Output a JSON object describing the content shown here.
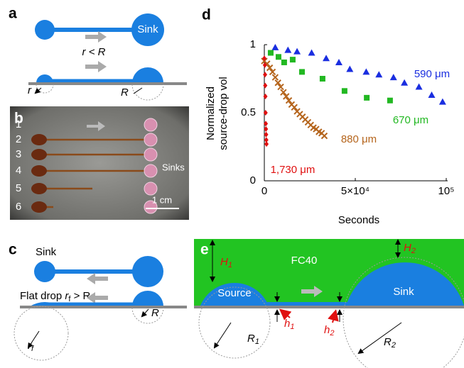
{
  "panels": {
    "a": {
      "label": "a",
      "sink": "Sink",
      "relation": "r < R",
      "r": "r",
      "R": "R"
    },
    "b": {
      "label": "b",
      "rows": [
        "1",
        "2",
        "3",
        "4",
        "5",
        "6"
      ],
      "sinks": "Sinks",
      "scale": "1 cm"
    },
    "c": {
      "label": "c",
      "sink": "Sink",
      "flat_drop": [
        "Flat drop ",
        "r",
        "f",
        " > R"
      ],
      "R": "R",
      "rf": [
        "r",
        "f"
      ]
    },
    "e": {
      "label": "e",
      "H1": [
        "H",
        "1"
      ],
      "fluid": "FC40",
      "H2": [
        "H",
        "2"
      ],
      "source": "Source",
      "sink": "Sink",
      "h1": [
        "h",
        "1"
      ],
      "h2": [
        "h",
        "2"
      ],
      "R1": [
        "R",
        "1"
      ],
      "R2": [
        "R",
        "2"
      ]
    }
  },
  "chart_data": {
    "type": "scatter",
    "panel_label": "d",
    "xlabel": "Seconds",
    "ylabel": [
      "Normalized",
      "source-drop vol"
    ],
    "xlim": [
      0,
      100000
    ],
    "ylim": [
      0,
      1
    ],
    "xticks": [
      0,
      {
        "value": 50000,
        "label": "5×10⁴"
      },
      {
        "value": 100000,
        "label": "10⁵"
      }
    ],
    "yticks": [
      0,
      0.5,
      1
    ],
    "series": [
      {
        "name": "590 μm",
        "color": "#1a2ee0",
        "marker": "triangle",
        "x": [
          6000,
          13000,
          18000,
          26000,
          34000,
          41000,
          47000,
          56000,
          63000,
          71000,
          77000,
          85000,
          92000,
          98000
        ],
        "values": [
          0.98,
          0.96,
          0.95,
          0.94,
          0.9,
          0.87,
          0.82,
          0.8,
          0.78,
          0.76,
          0.72,
          0.69,
          0.63,
          0.58
        ]
      },
      {
        "name": "670 μm",
        "color": "#22b822",
        "marker": "square",
        "x": [
          3500,
          7800,
          10900,
          15600,
          20700,
          32000,
          44100,
          56300,
          69100
        ],
        "values": [
          0.94,
          0.91,
          0.87,
          0.89,
          0.8,
          0.75,
          0.66,
          0.61,
          0.59
        ]
      },
      {
        "name": "880 μm",
        "color": "#b5651d",
        "marker": "cross",
        "x": [
          0,
          1500,
          3000,
          4500,
          6000,
          7500,
          9000,
          10500,
          12000,
          13500,
          15000,
          16500,
          18000,
          19500,
          21000,
          22500,
          24000,
          25500,
          27000,
          28500,
          30000,
          31500,
          33000
        ],
        "values": [
          0.88,
          0.86,
          0.83,
          0.8,
          0.76,
          0.72,
          0.69,
          0.65,
          0.62,
          0.59,
          0.56,
          0.54,
          0.51,
          0.49,
          0.47,
          0.45,
          0.43,
          0.41,
          0.39,
          0.38,
          0.36,
          0.35,
          0.33
        ]
      },
      {
        "name": "1,730 μm",
        "color": "#e01010",
        "marker": "diamond",
        "x": [
          0,
          300,
          400,
          500,
          600,
          700,
          800,
          900,
          1000,
          1100,
          1200
        ],
        "values": [
          0.9,
          0.85,
          0.78,
          0.7,
          0.62,
          0.5,
          0.42,
          0.38,
          0.34,
          0.3,
          0.27
        ]
      }
    ]
  }
}
